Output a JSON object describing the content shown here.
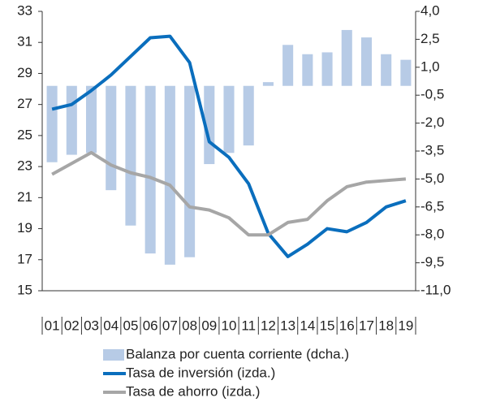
{
  "chart_data": {
    "type": "bar",
    "categories": [
      "01",
      "02",
      "03",
      "04",
      "05",
      "06",
      "07",
      "08",
      "09",
      "10",
      "11",
      "12",
      "13",
      "14",
      "15",
      "16",
      "17",
      "18",
      "19"
    ],
    "series": [
      {
        "name": "Balanza por cuenta corriente (dcha.)",
        "type": "bar",
        "axis": "y2",
        "color": "#b7cbe6",
        "values": [
          -4.1,
          -3.7,
          -3.6,
          -5.6,
          -7.5,
          -9.0,
          -9.6,
          -9.2,
          -4.2,
          -3.6,
          -3.2,
          0.2,
          2.2,
          1.7,
          1.8,
          3.0,
          2.6,
          1.7,
          1.4
        ]
      },
      {
        "name": "Tasa de inversión (izda.)",
        "type": "line",
        "color": "#0a6ebd",
        "values": [
          26.7,
          27.0,
          27.9,
          28.9,
          30.1,
          31.3,
          31.4,
          29.7,
          24.6,
          23.6,
          21.9,
          18.7,
          17.2,
          18.0,
          19.0,
          18.8,
          19.4,
          20.4,
          20.8
        ]
      },
      {
        "name": "Tasa de ahorro (izda.)",
        "type": "line",
        "color": "#a6a6a6",
        "values": [
          22.5,
          23.2,
          23.9,
          23.1,
          22.6,
          22.3,
          21.8,
          20.4,
          20.2,
          19.7,
          18.6,
          18.6,
          19.4,
          19.6,
          20.8,
          21.7,
          22.0,
          22.1,
          22.2
        ]
      }
    ],
    "ylim": [
      15,
      33
    ],
    "yticks": [
      15,
      17,
      19,
      21,
      23,
      25,
      27,
      29,
      31,
      33
    ],
    "y2lim": [
      -11,
      4
    ],
    "y2ticks": [
      {
        "value": -11,
        "label": "-11,0"
      },
      {
        "value": -9.5,
        "label": "-9,5"
      },
      {
        "value": -8,
        "label": "-8,0"
      },
      {
        "value": -6.5,
        "label": "-6,5"
      },
      {
        "value": -5,
        "label": "-5,0"
      },
      {
        "value": -3.5,
        "label": "-3,5"
      },
      {
        "value": -2,
        "label": "-2,0"
      },
      {
        "value": -0.5,
        "label": "-0,5"
      },
      {
        "value": 1,
        "label": "1,0"
      },
      {
        "value": 2.5,
        "label": "2,5"
      },
      {
        "value": 4,
        "label": "4,0"
      }
    ],
    "grid": false,
    "legend": "bottom"
  }
}
